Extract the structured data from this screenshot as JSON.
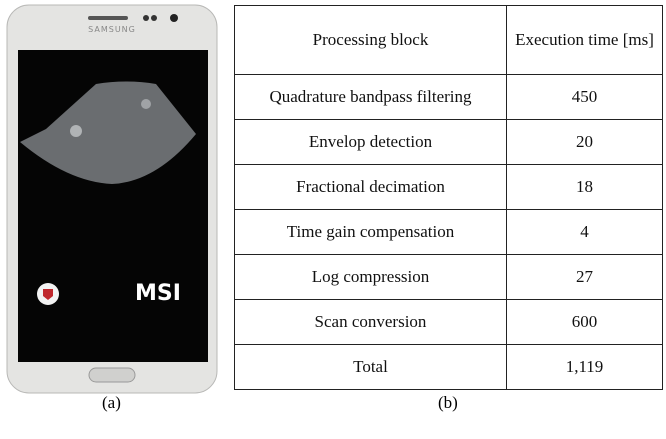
{
  "panel_a": {
    "brand": "SAMSUNG",
    "logo": "MSI",
    "label": "(a)"
  },
  "panel_b": {
    "label": "(b)",
    "table": {
      "header": [
        "Processing block",
        "Execution time [ms]"
      ],
      "rows": [
        [
          "Quadrature bandpass filtering",
          "450"
        ],
        [
          "Envelop detection",
          "20"
        ],
        [
          "Fractional decimation",
          "18"
        ],
        [
          "Time gain compensation",
          "4"
        ],
        [
          "Log compression",
          "27"
        ],
        [
          "Scan conversion",
          "600"
        ],
        [
          "Total",
          "1,119"
        ]
      ]
    }
  }
}
